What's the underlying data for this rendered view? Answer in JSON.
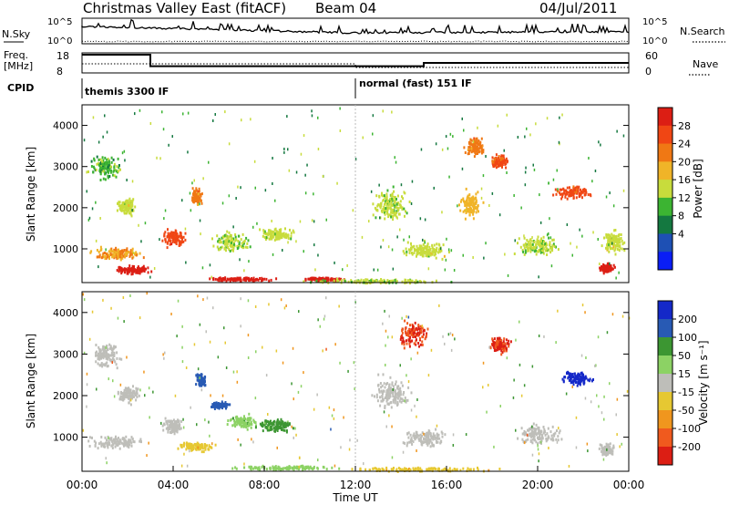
{
  "header": {
    "title": "Christmas Valley East (fitACF)",
    "beam": "Beam 04",
    "date": "04/Jul/2011"
  },
  "status_panels": {
    "nsky_label": "N.Sky",
    "nsearch_label": "N.Search",
    "freq_label_1": "Freq.",
    "freq_label_2": "[MHz]",
    "nave_label": "Nave",
    "cpid_label": "CPID",
    "nsky_ticks": [
      "10^5",
      "10^0"
    ],
    "nsearch_ticks": [
      "10^5",
      "10^0"
    ],
    "freq_ticks": [
      "18",
      "8"
    ],
    "nave_ticks": [
      "60",
      "0"
    ],
    "cpid_segments": [
      {
        "start_hour": 0,
        "end_hour": 12,
        "label": "themis 3300 IF"
      },
      {
        "start_hour": 12,
        "end_hour": 24,
        "label": "normal (fast) 151 IF"
      }
    ],
    "freq_steps": [
      {
        "start_hour": 0,
        "end_hour": 3,
        "value": 18
      },
      {
        "start_hour": 3,
        "end_hour": 12,
        "value": 11
      },
      {
        "start_hour": 12,
        "end_hour": 15,
        "value": 11
      },
      {
        "start_hour": 15,
        "end_hour": 24,
        "value": 13
      }
    ]
  },
  "colorbars": {
    "power": {
      "title": "Power [dB]",
      "tick_labels": [
        "4",
        "8",
        "12",
        "16",
        "20",
        "24",
        "28"
      ],
      "colors": [
        "#0a1ef5",
        "#1e50b4",
        "#147840",
        "#3cb432",
        "#c8dc3c",
        "#f0b428",
        "#f07814",
        "#f04614",
        "#dc1e14"
      ]
    },
    "velocity": {
      "title": "Velocity [m s⁻¹]",
      "tick_labels": [
        "200",
        "100",
        "50",
        "15",
        "-15",
        "-50",
        "-100",
        "-200"
      ],
      "colors": [
        "#1428c8",
        "#285ab4",
        "#3c9632",
        "#8cd264",
        "#bebeb9",
        "#e6c832",
        "#f0961e",
        "#f05a1e",
        "#dc1e14"
      ]
    }
  },
  "chart_data": [
    {
      "type": "heatmap",
      "name": "power",
      "ylabel": "Slant Range [km]",
      "xlim": [
        0,
        24
      ],
      "ylim": [
        180,
        4500
      ],
      "yticks": [
        1000,
        2000,
        3000,
        4000
      ],
      "ytick_labels": [
        "1000",
        "2000",
        "3000",
        "4000"
      ],
      "blobs": [
        {
          "t": 1.0,
          "r": 3000,
          "dt": 0.8,
          "dr": 350,
          "v": 7
        },
        {
          "t": 2.0,
          "r": 2050,
          "dt": 0.6,
          "dr": 250,
          "v": 10
        },
        {
          "t": 1.5,
          "r": 900,
          "dt": 1.4,
          "dr": 200,
          "v": 16
        },
        {
          "t": 2.2,
          "r": 520,
          "dt": 1.0,
          "dr": 120,
          "v": 27
        },
        {
          "t": 4.0,
          "r": 1300,
          "dt": 0.6,
          "dr": 280,
          "v": 22
        },
        {
          "t": 5.0,
          "r": 2300,
          "dt": 0.3,
          "dr": 250,
          "v": 18
        },
        {
          "t": 6.5,
          "r": 1200,
          "dt": 1.0,
          "dr": 300,
          "v": 9
        },
        {
          "t": 8.5,
          "r": 1350,
          "dt": 1.0,
          "dr": 200,
          "v": 10
        },
        {
          "t": 7.0,
          "r": 290,
          "dt": 1.8,
          "dr": 60,
          "v": 28
        },
        {
          "t": 10.5,
          "r": 290,
          "dt": 1.2,
          "dr": 60,
          "v": 27
        },
        {
          "t": 13.5,
          "r": 2100,
          "dt": 1.0,
          "dr": 500,
          "v": 9
        },
        {
          "t": 15.0,
          "r": 1000,
          "dt": 1.2,
          "dr": 250,
          "v": 10
        },
        {
          "t": 17.2,
          "r": 3500,
          "dt": 0.5,
          "dr": 300,
          "v": 18
        },
        {
          "t": 18.3,
          "r": 3150,
          "dt": 0.5,
          "dr": 200,
          "v": 21
        },
        {
          "t": 17.0,
          "r": 2100,
          "dt": 0.6,
          "dr": 400,
          "v": 14
        },
        {
          "t": 21.5,
          "r": 2400,
          "dt": 1.0,
          "dr": 200,
          "v": 22
        },
        {
          "t": 20.0,
          "r": 1100,
          "dt": 1.2,
          "dr": 300,
          "v": 9
        },
        {
          "t": 23.0,
          "r": 550,
          "dt": 0.4,
          "dr": 150,
          "v": 27
        },
        {
          "t": 23.3,
          "r": 1200,
          "dt": 0.6,
          "dr": 350,
          "v": 10
        },
        {
          "t": 13.0,
          "r": 240,
          "dt": 4.0,
          "dr": 70,
          "v": 9
        }
      ]
    },
    {
      "type": "heatmap",
      "name": "velocity",
      "ylabel": "Slant Range [km]",
      "xlabel": "Time UT",
      "xlim": [
        0,
        24
      ],
      "ylim": [
        180,
        4500
      ],
      "yticks": [
        1000,
        2000,
        3000,
        4000
      ],
      "ytick_labels": [
        "1000",
        "2000",
        "3000",
        "4000"
      ],
      "xticks": [
        0,
        4,
        8,
        12,
        16,
        20,
        24
      ],
      "xtick_labels": [
        "00:00",
        "04:00",
        "08:00",
        "12:00",
        "16:00",
        "20:00",
        "00:00"
      ],
      "blobs": [
        {
          "t": 1.0,
          "r": 3000,
          "dt": 0.8,
          "dr": 350,
          "v": 0
        },
        {
          "t": 2.0,
          "r": 2050,
          "dt": 0.6,
          "dr": 250,
          "v": 0
        },
        {
          "t": 1.5,
          "r": 900,
          "dt": 1.4,
          "dr": 200,
          "v": 0
        },
        {
          "t": 4.0,
          "r": 1300,
          "dt": 0.6,
          "dr": 280,
          "v": 0
        },
        {
          "t": 5.2,
          "r": 2400,
          "dt": 0.3,
          "dr": 200,
          "v": 120
        },
        {
          "t": 6.0,
          "r": 1800,
          "dt": 0.5,
          "dr": 100,
          "v": 150
        },
        {
          "t": 7.0,
          "r": 1400,
          "dt": 0.8,
          "dr": 200,
          "v": 40
        },
        {
          "t": 8.5,
          "r": 1300,
          "dt": 1.0,
          "dr": 200,
          "v": 60
        },
        {
          "t": 5.0,
          "r": 800,
          "dt": 1.0,
          "dr": 150,
          "v": -40
        },
        {
          "t": 9.0,
          "r": 290,
          "dt": 3.0,
          "dr": 60,
          "v": 30
        },
        {
          "t": 13.5,
          "r": 2100,
          "dt": 1.0,
          "dr": 500,
          "v": 0
        },
        {
          "t": 15.0,
          "r": 1000,
          "dt": 1.2,
          "dr": 250,
          "v": 0
        },
        {
          "t": 14.5,
          "r": 3500,
          "dt": 0.8,
          "dr": 400,
          "v": -200
        },
        {
          "t": 18.3,
          "r": 3250,
          "dt": 0.6,
          "dr": 250,
          "v": -200
        },
        {
          "t": 21.7,
          "r": 2450,
          "dt": 0.9,
          "dr": 200,
          "v": 230
        },
        {
          "t": 20.0,
          "r": 1100,
          "dt": 1.2,
          "dr": 300,
          "v": 0
        },
        {
          "t": 23.0,
          "r": 700,
          "dt": 0.4,
          "dr": 200,
          "v": 0
        },
        {
          "t": 15.0,
          "r": 250,
          "dt": 4.0,
          "dr": 60,
          "v": -40
        }
      ]
    }
  ]
}
